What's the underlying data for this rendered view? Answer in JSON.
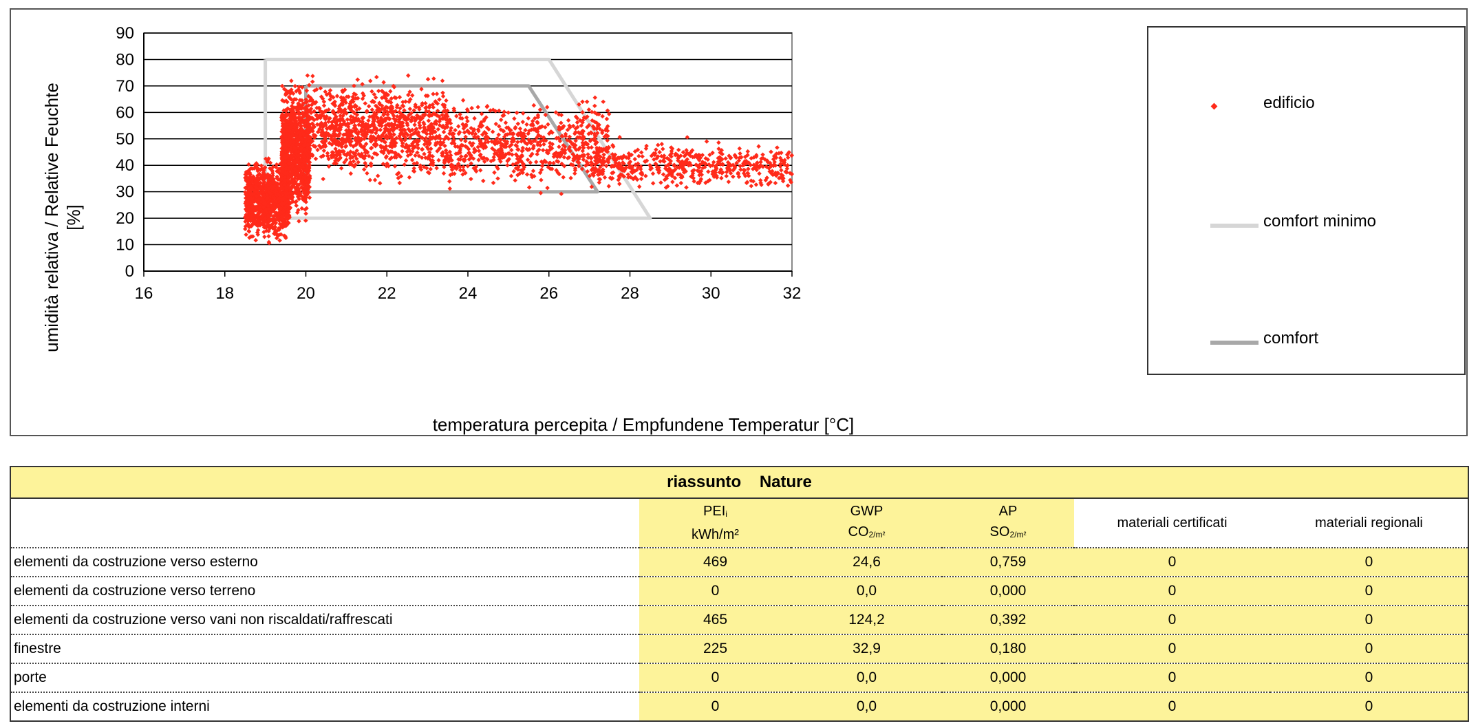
{
  "chart_data": {
    "type": "scatter",
    "xlabel": "temperatura percepita / Empfundene Temperatur [°C]",
    "ylabel_line1": "umidità relativa / Relative Feuchte",
    "ylabel_line2": "[%]",
    "xlim": [
      16,
      32
    ],
    "ylim": [
      0,
      90
    ],
    "xticks": [
      "16",
      "18",
      "20",
      "22",
      "24",
      "26",
      "28",
      "30",
      "32"
    ],
    "yticks": [
      "0",
      "10",
      "20",
      "30",
      "40",
      "50",
      "60",
      "70",
      "80",
      "90"
    ],
    "grid": "horizontal",
    "legend_position": "right",
    "legend": [
      "edificio",
      "comfort minimo",
      "comfort"
    ],
    "series": [
      {
        "name": "edificio",
        "kind": "points",
        "color": "#ff2a1a",
        "clusters": [
          {
            "x_min": 18.5,
            "x_max": 19.6,
            "y_min": 8,
            "y_max": 45,
            "share": 0.23
          },
          {
            "x_min": 19.4,
            "x_max": 20.1,
            "y_min": 15,
            "y_max": 76,
            "share": 0.24
          },
          {
            "x_min": 20.0,
            "x_max": 23.5,
            "y_min": 30,
            "y_max": 77,
            "share": 0.25
          },
          {
            "x_min": 23.5,
            "x_max": 27.5,
            "y_min": 28,
            "y_max": 68,
            "share": 0.16
          },
          {
            "x_min": 27.0,
            "x_max": 32.0,
            "y_min": 29,
            "y_max": 51,
            "share": 0.12
          }
        ]
      },
      {
        "name": "comfort minimo",
        "kind": "polygon",
        "color": "#d6d6d6",
        "points": [
          [
            19,
            80
          ],
          [
            26,
            80
          ],
          [
            28.5,
            20
          ],
          [
            19,
            20
          ],
          [
            19,
            80
          ]
        ]
      },
      {
        "name": "comfort",
        "kind": "polygon",
        "color": "#a8a8a8",
        "points": [
          [
            20,
            70
          ],
          [
            25.5,
            70
          ],
          [
            27.2,
            30
          ],
          [
            20,
            30
          ],
          [
            20,
            70
          ]
        ]
      }
    ]
  },
  "summary": {
    "title": "riassunto    Nature",
    "columns": [
      {
        "line1": "PEI",
        "line1_sub": "i",
        "line2": "kWh/m²",
        "line2_sub": ""
      },
      {
        "line1": "GWP",
        "line1_sub": "",
        "line2": "CO",
        "line2_sub": "2/m²"
      },
      {
        "line1": "AP",
        "line1_sub": "",
        "line2": "SO",
        "line2_sub": "2/m²"
      },
      {
        "line1": "materiali certificati",
        "line1_sub": "",
        "line2": "",
        "line2_sub": ""
      },
      {
        "line1": "materiali regionali",
        "line1_sub": "",
        "line2": "",
        "line2_sub": ""
      }
    ],
    "rows": [
      {
        "label": "elementi da costruzione verso esterno",
        "values": [
          "469",
          "24,6",
          "0,759",
          "0",
          "0"
        ]
      },
      {
        "label": "elementi da costruzione verso terreno",
        "values": [
          "0",
          "0,0",
          "0,000",
          "0",
          "0"
        ]
      },
      {
        "label": "elementi da costruzione verso vani non riscaldati/raffrescati",
        "values": [
          "465",
          "124,2",
          "0,392",
          "0",
          "0"
        ]
      },
      {
        "label": "finestre",
        "values": [
          "225",
          "32,9",
          "0,180",
          "0",
          "0"
        ]
      },
      {
        "label": "porte",
        "values": [
          "0",
          "0,0",
          "0,000",
          "0",
          "0"
        ]
      },
      {
        "label": "elementi da costruzione interni",
        "values": [
          "0",
          "0,0",
          "0,000",
          "0",
          "0"
        ]
      }
    ]
  }
}
